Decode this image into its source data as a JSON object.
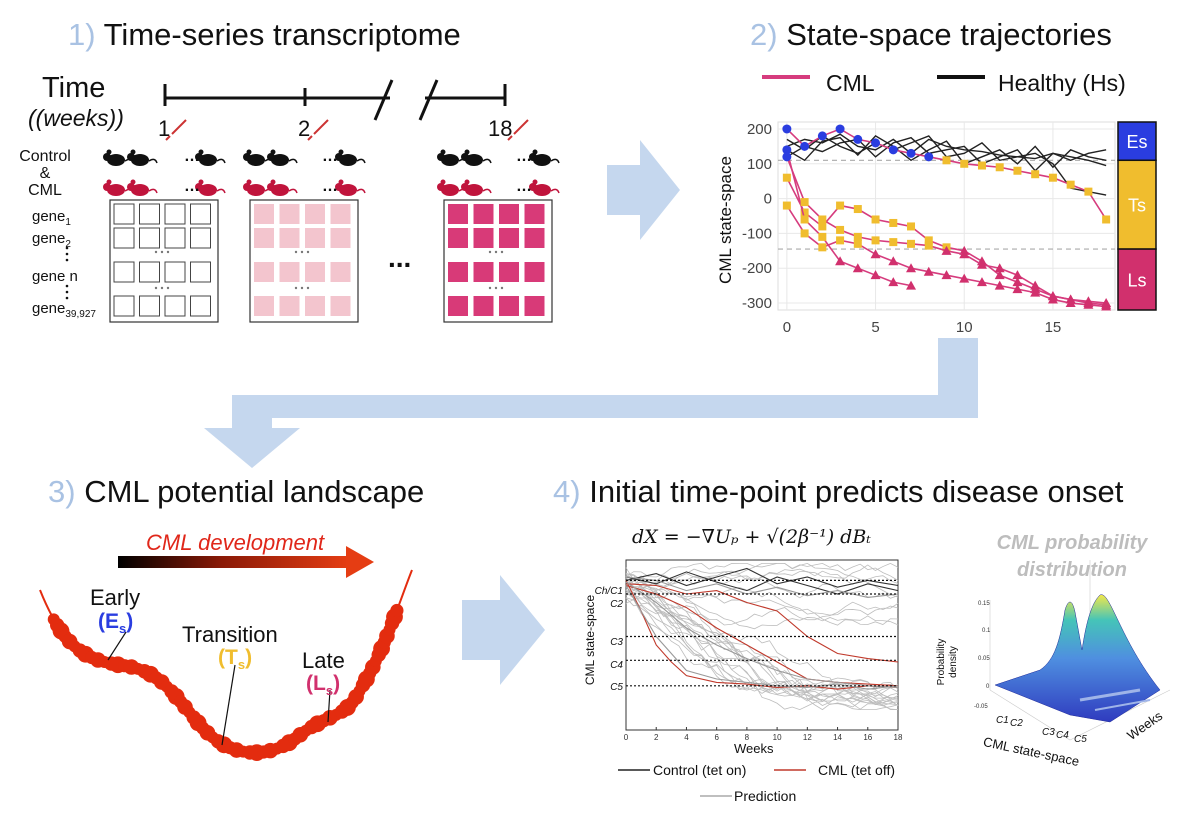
{
  "colors": {
    "arrow": "#c5d7ee",
    "cml": "#d63c7e",
    "healthy": "#222222",
    "early": "#2a3de0",
    "transition": "#f0bd2e",
    "late": "#d1306d",
    "landscape": "#e32c0f",
    "cell_light": "#f3c5ce",
    "cell_dark": "#d83a78"
  },
  "panel1": {
    "num": "1)",
    "title": "Time-series transcriptome",
    "time_label": "Time",
    "weeks_label": "(weeks)",
    "ticks": [
      "1",
      "2",
      "18"
    ],
    "control_label": "Control",
    "amp": "&",
    "cml_label": "CML",
    "genes": [
      {
        "name": "gene",
        "sub": "1"
      },
      {
        "name": "gene",
        "sub": "2"
      },
      {
        "name": "gene n",
        "sub": ""
      },
      {
        "name": "gene",
        "sub": "39,927"
      }
    ],
    "ellipsis": "...",
    "dots": "…"
  },
  "panel2": {
    "num": "2)",
    "title": "State-space trajectories",
    "legend": [
      "CML",
      "Healthy (Hs)"
    ],
    "ylabel": "CML state-space",
    "states": [
      "Es",
      "Ts",
      "Ls"
    ]
  },
  "panel3": {
    "num": "3)",
    "title": "CML potential landscape",
    "development": "CML development",
    "early": "Early",
    "early_state": {
      "letter": "E",
      "sub": "s"
    },
    "transition": "Transition",
    "transition_state": {
      "letter": "T",
      "sub": "s"
    },
    "late": "Late",
    "late_state": {
      "letter": "L",
      "sub": "s"
    }
  },
  "panel4": {
    "num": "4)",
    "title": "Initial time-point predicts disease onset",
    "equation": "dX = −∇Uₚ + √(2β⁻¹) dBₜ",
    "ylabel": "CML state-space",
    "xlabel": "Weeks",
    "levels": [
      "Ch/C1",
      "C2",
      "C3",
      "C4",
      "C5"
    ],
    "legend_control": "Control (tet on)",
    "legend_cml": "CML (tet off)",
    "legend_prediction": "Prediction",
    "prob_title_1": "CML probability",
    "prob_title_2": "distribution",
    "prob_ylabel_1": "Probability",
    "prob_ylabel_2": "density",
    "prob_xlabel": "CML state-space",
    "prob_weeks": "Weeks",
    "prob_axis_levels": [
      "C1",
      "C2",
      "C3",
      "C4",
      "C5"
    ],
    "prob_zticks": [
      "0.15",
      "0.1",
      "0.05",
      "0",
      "-0.05"
    ]
  },
  "chart_data": [
    {
      "type": "line",
      "title": "State-space trajectories",
      "xlabel": "",
      "ylabel": "CML state-space",
      "xlim": [
        -0.5,
        18.5
      ],
      "ylim": [
        -320,
        220
      ],
      "xticks": [
        0,
        5,
        10,
        15
      ],
      "yticks": [
        200,
        100,
        0,
        -100,
        -200,
        -300
      ],
      "thresholds": [
        110,
        -145
      ],
      "series": [
        {
          "name": "Healthy (Hs)",
          "x": [
            0,
            1,
            2,
            3,
            4,
            5,
            6,
            7,
            8,
            9,
            10,
            11,
            12,
            13,
            14,
            15,
            16,
            17,
            18
          ],
          "y": [
            150,
            170,
            160,
            185,
            150,
            140,
            170,
            130,
            170,
            150,
            140,
            135,
            125,
            120,
            115,
            130,
            120,
            110,
            95
          ]
        },
        {
          "name": "Healthy (Hs)",
          "x": [
            0,
            1,
            2,
            3,
            4,
            5,
            6,
            7,
            8,
            9,
            10,
            11,
            12,
            13,
            14,
            15,
            16,
            17,
            18
          ],
          "y": [
            140,
            110,
            165,
            175,
            125,
            180,
            150,
            110,
            140,
            165,
            100,
            120,
            140,
            100,
            150,
            90,
            140,
            120,
            110
          ]
        },
        {
          "name": "Healthy (Hs)",
          "x": [
            0,
            1,
            2,
            3,
            4,
            5,
            6,
            7,
            8,
            9,
            10,
            11,
            12,
            13,
            14,
            15,
            16,
            17,
            18
          ],
          "y": [
            120,
            150,
            135,
            160,
            170,
            120,
            160,
            175,
            130,
            140,
            150,
            100,
            120,
            140,
            80,
            130,
            110,
            130,
            140
          ]
        },
        {
          "name": "Healthy (Hs)",
          "x": [
            0,
            1,
            2,
            3,
            4,
            5,
            6,
            7,
            8,
            9,
            10,
            11,
            12,
            13,
            14,
            15,
            16,
            17,
            18
          ],
          "y": [
            170,
            140,
            180,
            150,
            130,
            160,
            140,
            160,
            180,
            120,
            130,
            160,
            110,
            120,
            130,
            100,
            30,
            20,
            10
          ]
        },
        {
          "name": "CML",
          "x": [
            0,
            1,
            2,
            3,
            4,
            5,
            6,
            7,
            8,
            9,
            10,
            11,
            12,
            13,
            14,
            15,
            16,
            17,
            18
          ],
          "y": [
            200,
            150,
            180,
            200,
            170,
            160,
            140,
            130,
            120,
            110,
            100,
            95,
            90,
            80,
            70,
            60,
            40,
            20,
            -60
          ]
        },
        {
          "name": "CML",
          "x": [
            0,
            1,
            2,
            3,
            4,
            5,
            6,
            7,
            8,
            9,
            10,
            11,
            12,
            13,
            14,
            15,
            16,
            17,
            18
          ],
          "y": [
            60,
            -40,
            -80,
            -20,
            -30,
            -60,
            -70,
            -80,
            -120,
            -140,
            -150,
            -180,
            -220,
            -240,
            -260,
            -280,
            -290,
            -300,
            -305
          ]
        },
        {
          "name": "CML",
          "x": [
            0,
            1,
            2,
            3,
            4,
            5,
            6,
            7,
            8,
            9,
            10,
            11,
            12,
            13,
            14,
            15,
            16,
            17,
            18
          ],
          "y": [
            -20,
            -100,
            -140,
            -120,
            -130,
            -160,
            -180,
            -200,
            -210,
            -220,
            -230,
            -240,
            -250,
            -260,
            -270,
            -290,
            -300,
            -305,
            -310
          ]
        },
        {
          "name": "CML",
          "x": [
            0,
            1,
            2,
            3,
            4,
            5,
            6,
            7
          ],
          "y": [
            140,
            -60,
            -110,
            -180,
            -200,
            -220,
            -240,
            -250
          ]
        },
        {
          "name": "CML",
          "x": [
            0,
            1,
            2,
            3,
            4,
            5,
            6,
            7,
            8,
            9,
            10,
            11,
            12,
            13,
            14,
            15,
            16,
            17,
            18
          ],
          "y": [
            120,
            -10,
            -60,
            -90,
            -110,
            -120,
            -125,
            -130,
            -135,
            -150,
            -160,
            -190,
            -200,
            -220,
            -250,
            -280,
            -290,
            -295,
            -300
          ]
        }
      ],
      "regions": [
        {
          "label": "Es",
          "from": 220,
          "to": 110
        },
        {
          "label": "Ts",
          "from": 110,
          "to": -145
        },
        {
          "label": "Ls",
          "from": -145,
          "to": -320
        }
      ]
    },
    {
      "type": "line",
      "title": "dX = −∇Uₚ + √(2β⁻¹) dBₜ",
      "xlabel": "Weeks",
      "ylabel": "CML state-space",
      "xlim": [
        0,
        18
      ],
      "xticks": [
        0,
        2,
        4,
        6,
        8,
        10,
        12,
        14,
        16,
        18
      ],
      "ylim": [
        0,
        1
      ],
      "levels": [
        {
          "label": "Ch/C1",
          "y": 0.88
        },
        {
          "label": "C2",
          "y": 0.8
        },
        {
          "label": "C3",
          "y": 0.55
        },
        {
          "label": "C4",
          "y": 0.41
        },
        {
          "label": "C5",
          "y": 0.26
        }
      ],
      "series": [
        {
          "name": "Control (tet on)",
          "x": [
            0,
            2,
            4,
            6,
            8,
            10,
            12,
            14,
            16,
            18
          ],
          "y": [
            0.88,
            0.92,
            0.85,
            0.9,
            0.95,
            0.86,
            0.9,
            0.84,
            0.88,
            0.85
          ]
        },
        {
          "name": "Control (tet on)",
          "x": [
            0,
            2,
            4,
            6,
            8,
            10,
            12,
            14,
            16,
            18
          ],
          "y": [
            0.9,
            0.86,
            0.93,
            0.87,
            0.82,
            0.9,
            0.85,
            0.8,
            0.86,
            0.82
          ]
        },
        {
          "name": "CML (tet off)",
          "x": [
            0,
            1,
            2,
            3,
            4,
            6,
            8,
            10,
            12,
            14,
            16,
            18
          ],
          "y": [
            0.88,
            0.7,
            0.5,
            0.4,
            0.32,
            0.28,
            0.27,
            0.25,
            0.26,
            0.24,
            0.26,
            0.25
          ]
        },
        {
          "name": "CML (tet off)",
          "x": [
            0,
            2,
            4,
            6,
            8,
            10,
            12,
            14,
            16,
            18
          ],
          "y": [
            0.85,
            0.8,
            0.72,
            0.6,
            0.5,
            0.4,
            0.3,
            0.28,
            0.27,
            0.26
          ]
        },
        {
          "name": "CML (tet off)",
          "x": [
            0,
            2,
            4,
            6,
            8,
            10,
            12,
            14,
            16,
            18
          ],
          "y": [
            0.86,
            0.85,
            0.8,
            0.82,
            0.75,
            0.7,
            0.55,
            0.45,
            0.42,
            0.4
          ]
        },
        {
          "name": "Prediction",
          "x": [
            0,
            2,
            4,
            6,
            8,
            10,
            12,
            14,
            16,
            18
          ],
          "y": [
            0.85,
            0.55,
            0.35,
            0.3,
            0.28,
            0.26,
            0.25,
            0.27,
            0.24,
            0.26
          ]
        },
        {
          "name": "Prediction",
          "x": [
            0,
            2,
            4,
            6,
            8,
            10,
            12,
            14,
            16,
            18
          ],
          "y": [
            0.9,
            0.88,
            0.82,
            0.86,
            0.8,
            0.84,
            0.79,
            0.82,
            0.78,
            0.8
          ]
        },
        {
          "name": "Prediction",
          "x": [
            0,
            2,
            4,
            6,
            8,
            10,
            12,
            14,
            16,
            18
          ],
          "y": [
            0.87,
            0.75,
            0.6,
            0.5,
            0.42,
            0.35,
            0.3,
            0.28,
            0.26,
            0.25
          ]
        }
      ]
    }
  ]
}
